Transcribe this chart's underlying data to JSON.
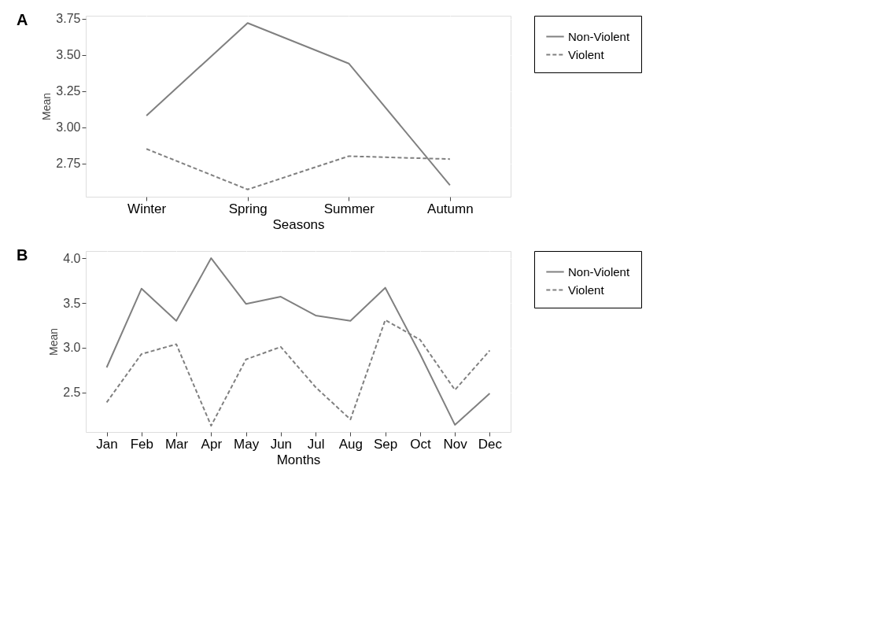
{
  "chart_data": [
    {
      "type": "line",
      "xlabel": "Seasons",
      "ylabel": "Mean",
      "annotations": [
        "A"
      ],
      "categories": [
        "Winter",
        "Spring",
        "Summer",
        "Autumn"
      ],
      "series": [
        {
          "name": "Non-Violent",
          "color": "#808080",
          "line_style": "solid",
          "values": [
            3.08,
            3.72,
            3.44,
            2.6
          ]
        },
        {
          "name": "Violent",
          "color": "#808080",
          "line_style": "dashed",
          "values": [
            2.85,
            2.57,
            2.8,
            2.78
          ]
        }
      ],
      "ylim": [
        2.52,
        3.77
      ],
      "yticks": [
        2.75,
        {
          "value": 3,
          "label": "3.00"
        },
        {
          "value": 3.25,
          "label": "3.25"
        },
        {
          "value": 3.5,
          "label": "3.50"
        },
        3.75
      ],
      "grid": true,
      "legend": "right",
      "marker": "none"
    },
    {
      "type": "line",
      "xlabel": "Months",
      "ylabel": "Mean",
      "annotations": [
        "B"
      ],
      "categories": [
        "Jan",
        "Feb",
        "Mar",
        "Apr",
        "May",
        "Jun",
        "Jul",
        "Aug",
        "Sep",
        "Oct",
        "Nov",
        "Dec"
      ],
      "series": [
        {
          "name": "Non-Violent",
          "color": "#808080",
          "line_style": "solid",
          "values": [
            2.78,
            3.66,
            3.3,
            4.0,
            3.49,
            3.57,
            3.36,
            3.3,
            3.67,
            2.93,
            2.14,
            2.49
          ]
        },
        {
          "name": "Violent",
          "color": "#808080",
          "line_style": "dashed",
          "values": [
            2.39,
            2.93,
            3.04,
            2.13,
            2.87,
            3.01,
            2.56,
            2.2,
            3.31,
            3.09,
            2.53,
            2.97
          ]
        }
      ],
      "ylim": [
        2.06,
        4.08
      ],
      "yticks": [
        2.5,
        {
          "value": 3,
          "label": "3.0"
        },
        3.5,
        {
          "value": 4,
          "label": "4.0"
        }
      ],
      "grid": true,
      "legend": "right",
      "marker": "none"
    }
  ]
}
